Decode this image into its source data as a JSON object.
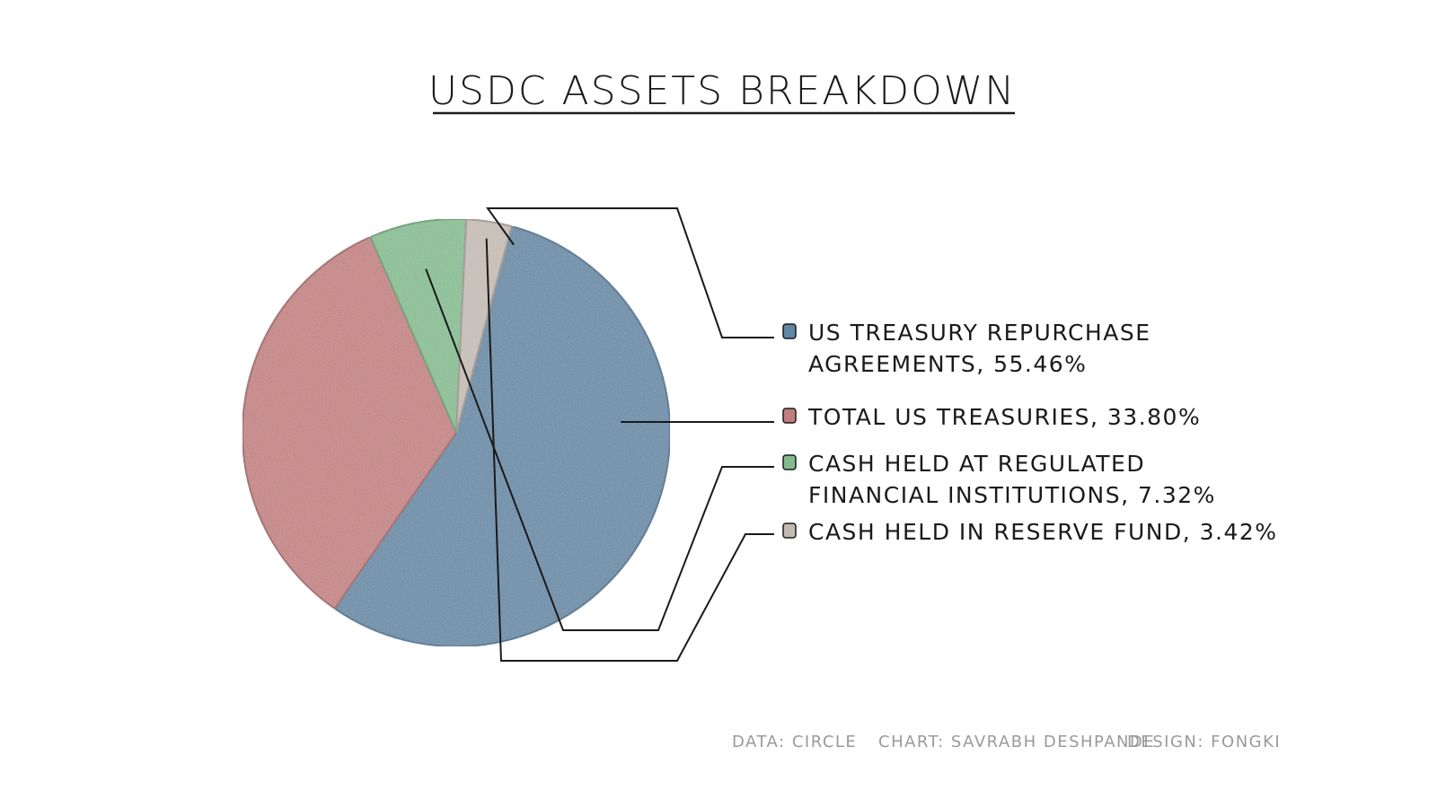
{
  "title": "USDC ASSETS BREAKDOWN",
  "chart_data": {
    "type": "pie",
    "title": "USDC ASSETS BREAKDOWN",
    "slices": [
      {
        "label_lines": [
          "US TREASURY REPURCHASE",
          "AGREEMENTS, 55.46%"
        ],
        "value": 55.46,
        "color": "#5f86a3",
        "edge": "#3f6784"
      },
      {
        "label_lines": [
          "TOTAL US TREASURIES, 33.80%"
        ],
        "value": 33.8,
        "color": "#c27d7e",
        "edge": "#9a5a5b"
      },
      {
        "label_lines": [
          "CASH HELD AT REGULATED",
          "FINANCIAL INSTITUTIONS, 7.32%"
        ],
        "value": 7.32,
        "color": "#82bb8d",
        "edge": "#5e9469"
      },
      {
        "label_lines": [
          "CASH HELD IN RESERVE FUND, 3.42%"
        ],
        "value": 3.42,
        "color": "#c3bab2",
        "edge": "#9a918a"
      }
    ]
  },
  "credits": {
    "data": "DATA: CIRCLE",
    "chart": "CHART: SAVRABH DESHPANDE",
    "design": "DESIGN: FONGKI"
  }
}
